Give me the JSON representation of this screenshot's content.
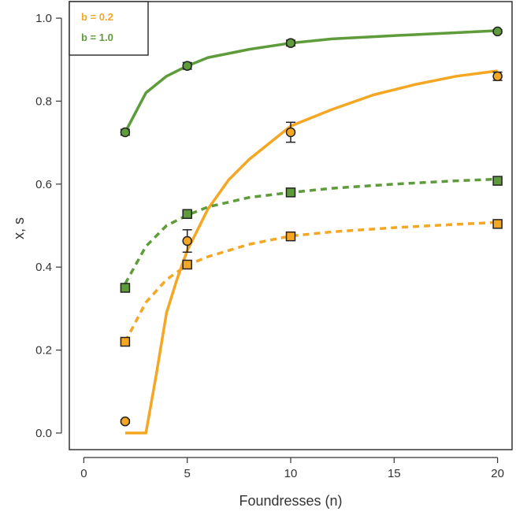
{
  "chart_data": {
    "type": "line",
    "title": "",
    "xlabel": "Foundresses (n)",
    "ylabel": "x, s",
    "xlim": [
      -0.7,
      20.7
    ],
    "ylim": [
      -0.04,
      1.04
    ],
    "x_ticks": [
      0,
      5,
      10,
      15,
      20
    ],
    "y_ticks": [
      0.0,
      0.2,
      0.4,
      0.6,
      0.8,
      1.0
    ],
    "x_tick_labels": [
      "0",
      "5",
      "10",
      "15",
      "20"
    ],
    "y_tick_labels": [
      "0.0",
      "0.2",
      "0.4",
      "0.6",
      "0.8",
      "1.0"
    ],
    "grid": false,
    "legend_position": "top-left",
    "legend": [
      {
        "label": "b = 0.2",
        "color": "#F5A623"
      },
      {
        "label": "b = 1.0",
        "color": "#5E9B3A"
      }
    ],
    "curves": [
      {
        "group": "b = 1.0",
        "variable": "x",
        "style": "solid",
        "color": "#5E9B3A",
        "x": [
          2,
          3,
          4,
          5,
          6,
          8,
          10,
          12,
          15,
          18,
          20
        ],
        "y": [
          0.725,
          0.82,
          0.86,
          0.885,
          0.905,
          0.925,
          0.94,
          0.95,
          0.958,
          0.965,
          0.97
        ]
      },
      {
        "group": "b = 0.2",
        "variable": "x",
        "style": "solid",
        "color": "#F5A623",
        "x": [
          2,
          3,
          3.5,
          4,
          4.5,
          5,
          6,
          7,
          8,
          10,
          12,
          14,
          16,
          18,
          20
        ],
        "y": [
          0,
          0,
          0.14,
          0.29,
          0.37,
          0.44,
          0.54,
          0.61,
          0.66,
          0.74,
          0.78,
          0.815,
          0.84,
          0.86,
          0.873
        ]
      },
      {
        "group": "b = 1.0",
        "variable": "s",
        "style": "dashed",
        "color": "#5E9B3A",
        "x": [
          2,
          3,
          4,
          5,
          6,
          8,
          10,
          12,
          15,
          18,
          20
        ],
        "y": [
          0.36,
          0.45,
          0.5,
          0.525,
          0.545,
          0.568,
          0.58,
          0.59,
          0.6,
          0.608,
          0.612
        ]
      },
      {
        "group": "b = 0.2",
        "variable": "s",
        "style": "dashed",
        "color": "#F5A623",
        "x": [
          2,
          3,
          4,
          5,
          6,
          8,
          10,
          12,
          15,
          18,
          20
        ],
        "y": [
          0.22,
          0.315,
          0.37,
          0.405,
          0.425,
          0.455,
          0.475,
          0.485,
          0.495,
          0.503,
          0.508
        ]
      }
    ],
    "points": [
      {
        "group": "b = 1.0",
        "variable": "x",
        "marker": "circle",
        "color": "#5E9B3A",
        "x": [
          2,
          5,
          10,
          20
        ],
        "y": [
          0.725,
          0.885,
          0.94,
          0.968
        ],
        "err": [
          0.007,
          0.008,
          0.007,
          0.004
        ]
      },
      {
        "group": "b = 0.2",
        "variable": "x",
        "marker": "circle",
        "color": "#F5A623",
        "x": [
          2,
          5,
          10,
          20
        ],
        "y": [
          0.028,
          0.463,
          0.725,
          0.86
        ],
        "err": [
          0.004,
          0.027,
          0.024,
          0.01
        ]
      },
      {
        "group": "b = 1.0",
        "variable": "s",
        "marker": "square",
        "color": "#5E9B3A",
        "x": [
          2,
          5,
          10,
          20
        ],
        "y": [
          0.35,
          0.528,
          0.58,
          0.608
        ],
        "err": [
          0.006,
          0.006,
          0.006,
          0.005
        ]
      },
      {
        "group": "b = 0.2",
        "variable": "s",
        "marker": "square",
        "color": "#F5A623",
        "x": [
          2,
          5,
          10,
          20
        ],
        "y": [
          0.22,
          0.406,
          0.474,
          0.504
        ],
        "err": [
          0.006,
          0.008,
          0.007,
          0.006
        ]
      }
    ]
  }
}
